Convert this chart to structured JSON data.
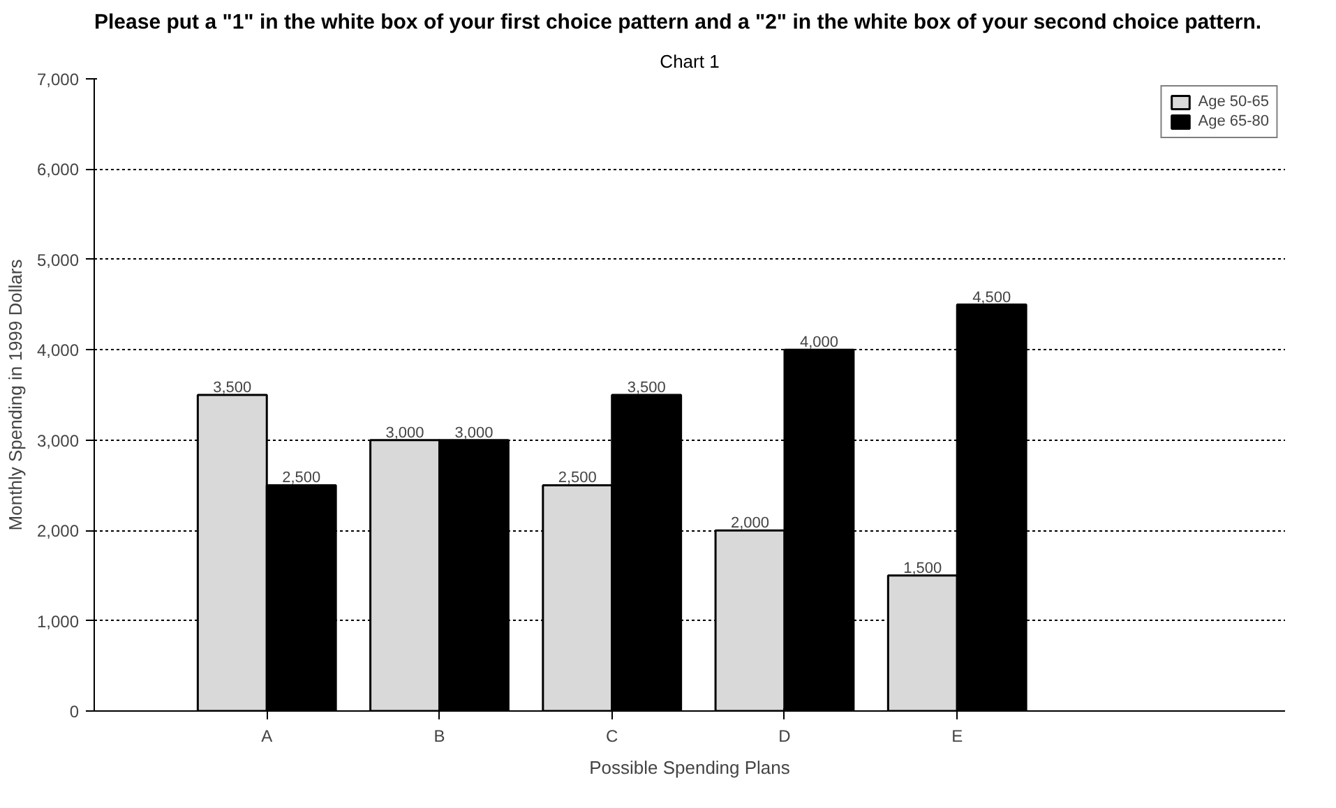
{
  "chart_data": {
    "type": "bar",
    "title": "Chart 1",
    "subtitle": "Please put a \"1\" in the white box of your first choice pattern and a \"2\" in the white box of your second choice pattern.",
    "xlabel": "Possible Spending Plans",
    "ylabel": "Monthly Spending in 1999 Dollars",
    "categories": [
      "A",
      "B",
      "C",
      "D",
      "E"
    ],
    "series": [
      {
        "name": "Age 50-65",
        "color": "#d9d9d9",
        "values": [
          3500,
          3000,
          2500,
          2000,
          1500
        ],
        "value_labels": [
          "3,500",
          "3,000",
          "2,500",
          "2,000",
          "1,500"
        ]
      },
      {
        "name": "Age 65-80",
        "color": "#000000",
        "values": [
          2500,
          3000,
          3500,
          4000,
          4500
        ],
        "value_labels": [
          "2,500",
          "3,000",
          "3,500",
          "4,000",
          "4,500"
        ]
      }
    ],
    "ylim": [
      0,
      7000
    ],
    "yticks": [
      {
        "value": 0,
        "label": "0"
      },
      {
        "value": 1000,
        "label": "1,000"
      },
      {
        "value": 2000,
        "label": "2,000"
      },
      {
        "value": 3000,
        "label": "3,000"
      },
      {
        "value": 4000,
        "label": "4,000"
      },
      {
        "value": 5000,
        "label": "5,000"
      },
      {
        "value": 6000,
        "label": "6,000"
      },
      {
        "value": 7000,
        "label": "7,000"
      }
    ],
    "grid": "y",
    "legend": "top right"
  }
}
